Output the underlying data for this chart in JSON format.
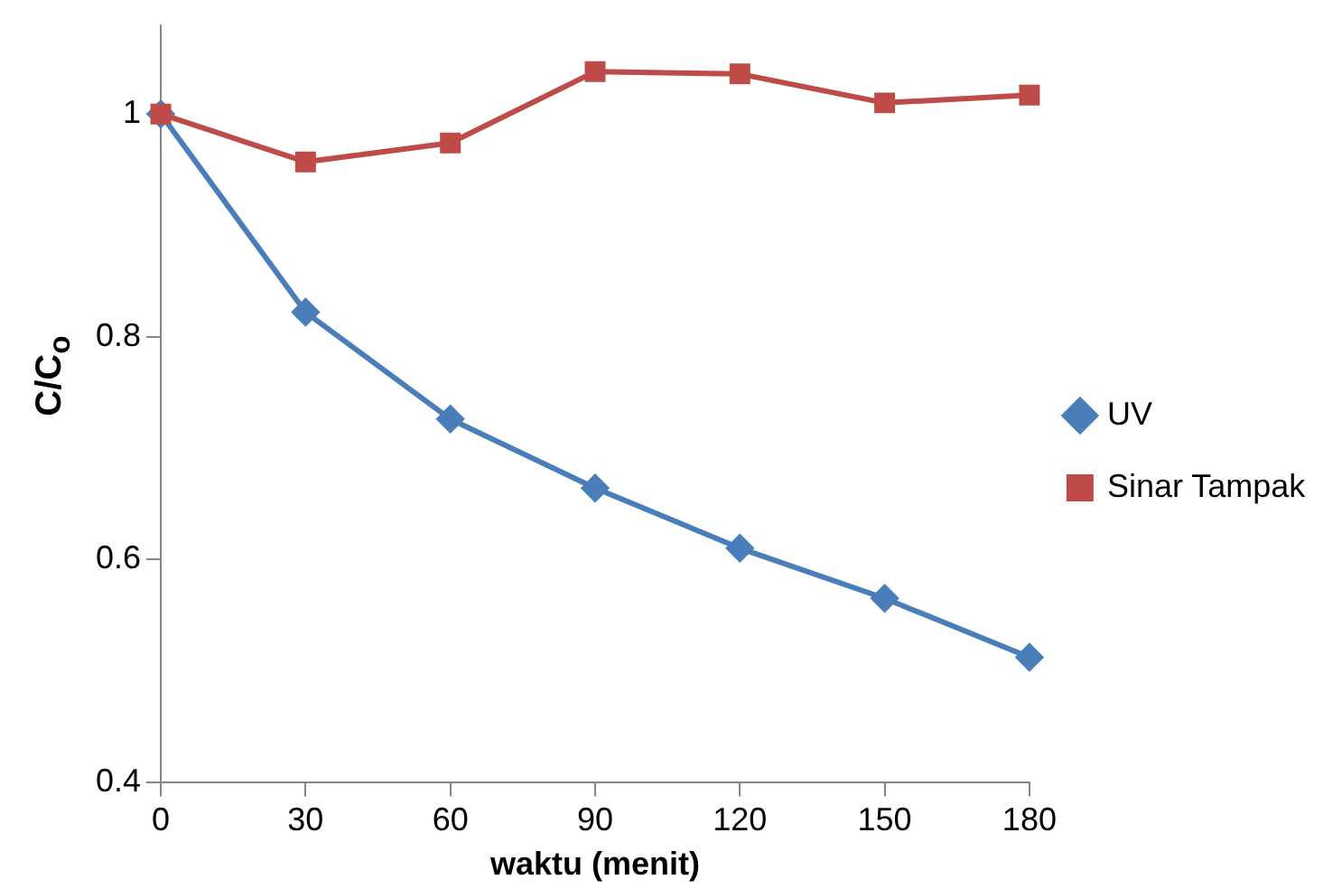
{
  "chart_data": {
    "type": "line",
    "xlabel": "waktu (menit)",
    "ylabel": "C/C$_{o}$",
    "categories": [
      "0",
      "30",
      "60",
      "90",
      "120",
      "150",
      "180"
    ],
    "series": [
      {
        "name": "UV",
        "color": "#4a7ebb",
        "marker": "diamond",
        "values": [
          1,
          0.822,
          0.726,
          0.664,
          0.61,
          0.565,
          0.512
        ]
      },
      {
        "name": "Sinar Tampak",
        "color": "#be4b48",
        "marker": "square",
        "values": [
          1,
          0.957,
          0.974,
          1.038,
          1.036,
          1.01,
          1.017
        ]
      }
    ],
    "ylim": [
      0.4,
      1.08
    ],
    "yticks": [
      0.4,
      0.6,
      0.8,
      1
    ],
    "grid": false,
    "legend": "right",
    "line_style": "solid"
  }
}
